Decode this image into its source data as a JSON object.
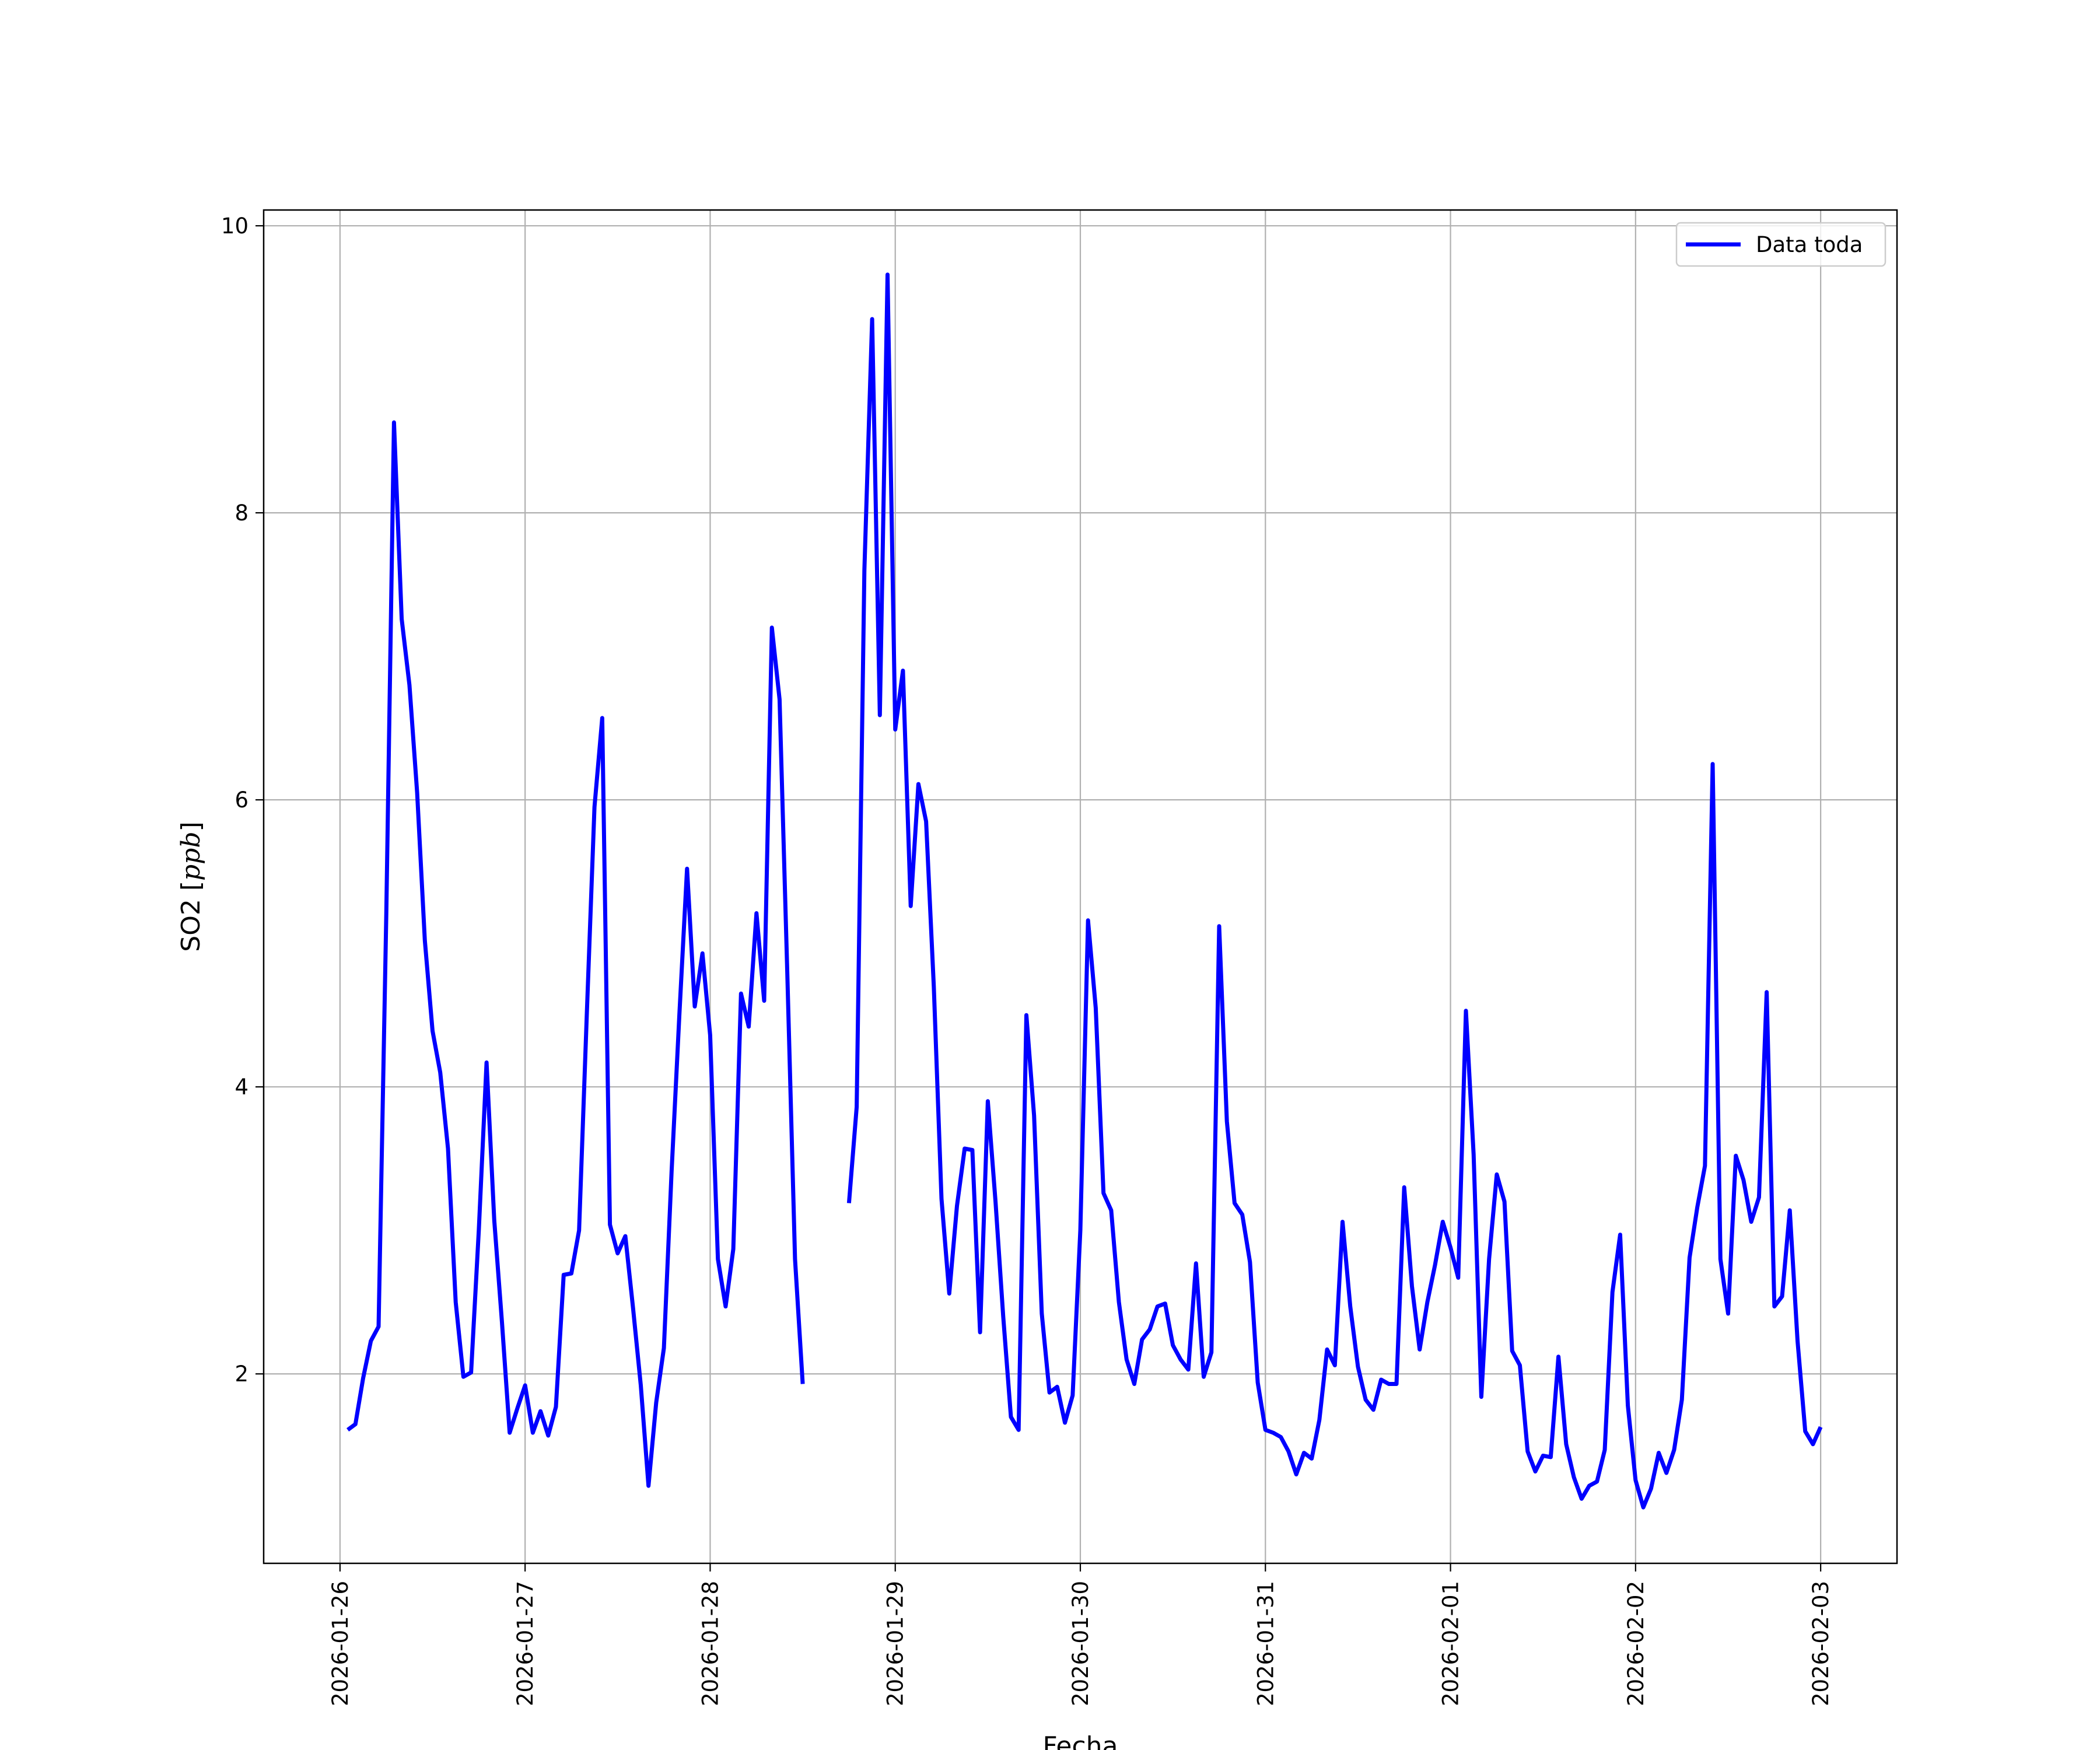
{
  "chart_data": {
    "type": "line",
    "title": "",
    "xlabel": "Fecha",
    "ylabel": "SO2 [ppb]",
    "x_ticks": [
      "2026-01-26",
      "2026-01-27",
      "2026-01-28",
      "2026-01-29",
      "2026-01-30",
      "2026-01-31",
      "2026-02-01",
      "2026-02-02",
      "2026-02-03"
    ],
    "y_ticks": [
      2,
      4,
      6,
      8,
      10
    ],
    "xlim": [
      "2026-01-25 14:06",
      "2026-02-03 09:54"
    ],
    "ylim": [
      0.68,
      10.11
    ],
    "grid": true,
    "legend_position": "top-right",
    "series": [
      {
        "name": "Data toda",
        "color": "#0000ff",
        "points": [
          [
            "2026-01-26 01:00",
            1.61
          ],
          [
            "2026-01-26 02:00",
            1.65
          ],
          [
            "2026-01-26 03:00",
            1.97
          ],
          [
            "2026-01-26 04:00",
            2.23
          ],
          [
            "2026-01-26 05:00",
            2.33
          ],
          [
            "2026-01-26 06:00",
            5.2
          ],
          [
            "2026-01-26 07:00",
            8.63
          ],
          [
            "2026-01-26 08:00",
            7.26
          ],
          [
            "2026-01-26 09:00",
            6.8
          ],
          [
            "2026-01-26 10:00",
            6.05
          ],
          [
            "2026-01-26 11:00",
            5.02
          ],
          [
            "2026-01-26 12:00",
            4.39
          ],
          [
            "2026-01-26 13:00",
            4.1
          ],
          [
            "2026-01-26 14:00",
            3.57
          ],
          [
            "2026-01-26 15:00",
            2.5
          ],
          [
            "2026-01-26 16:00",
            1.98
          ],
          [
            "2026-01-26 17:00",
            2.01
          ],
          [
            "2026-01-26 18:00",
            3.0
          ],
          [
            "2026-01-26 19:00",
            4.17
          ],
          [
            "2026-01-26 20:00",
            3.07
          ],
          [
            "2026-01-26 21:00",
            2.36
          ],
          [
            "2026-01-26 22:00",
            1.59
          ],
          [
            "2026-01-26 23:00",
            1.76
          ],
          [
            "2026-01-27 00:00",
            1.92
          ],
          [
            "2026-01-27 01:00",
            1.59
          ],
          [
            "2026-01-27 02:00",
            1.74
          ],
          [
            "2026-01-27 03:00",
            1.57
          ],
          [
            "2026-01-27 04:00",
            1.77
          ],
          [
            "2026-01-27 05:00",
            2.69
          ],
          [
            "2026-01-27 06:00",
            2.7
          ],
          [
            "2026-01-27 07:00",
            3.0
          ],
          [
            "2026-01-27 08:00",
            4.5
          ],
          [
            "2026-01-27 09:00",
            5.95
          ],
          [
            "2026-01-27 10:00",
            6.57
          ],
          [
            "2026-01-27 11:00",
            3.04
          ],
          [
            "2026-01-27 12:00",
            2.84
          ],
          [
            "2026-01-27 13:00",
            2.96
          ],
          [
            "2026-01-27 14:00",
            2.46
          ],
          [
            "2026-01-27 15:00",
            1.92
          ],
          [
            "2026-01-27 16:00",
            1.22
          ],
          [
            "2026-01-27 17:00",
            1.8
          ],
          [
            "2026-01-27 18:00",
            2.18
          ],
          [
            "2026-01-27 19:00",
            3.41
          ],
          [
            "2026-01-27 20:00",
            4.5
          ],
          [
            "2026-01-27 21:00",
            5.52
          ],
          [
            "2026-01-27 22:00",
            4.56
          ],
          [
            "2026-01-27 23:00",
            4.93
          ],
          [
            "2026-01-28 00:00",
            4.36
          ],
          [
            "2026-01-28 01:00",
            2.8
          ],
          [
            "2026-01-28 02:00",
            2.47
          ],
          [
            "2026-01-28 03:00",
            2.87
          ],
          [
            "2026-01-28 04:00",
            4.65
          ],
          [
            "2026-01-28 05:00",
            4.42
          ],
          [
            "2026-01-28 06:00",
            5.21
          ],
          [
            "2026-01-28 07:00",
            4.6
          ],
          [
            "2026-01-28 08:00",
            7.2
          ],
          [
            "2026-01-28 09:00",
            6.7
          ],
          [
            "2026-01-28 10:00",
            4.8
          ],
          [
            "2026-01-28 11:00",
            2.8
          ],
          [
            "2026-01-28 12:00",
            1.93
          ],
          [
            "2026-01-28 13:00",
            null
          ],
          [
            "2026-01-28 14:00",
            null
          ],
          [
            "2026-01-28 15:00",
            null
          ],
          [
            "2026-01-28 16:00",
            null
          ],
          [
            "2026-01-28 17:00",
            null
          ],
          [
            "2026-01-28 18:00",
            3.19
          ],
          [
            "2026-01-28 19:00",
            3.86
          ],
          [
            "2026-01-28 20:00",
            7.6
          ],
          [
            "2026-01-28 21:00",
            9.35
          ],
          [
            "2026-01-28 22:00",
            6.59
          ],
          [
            "2026-01-28 23:00",
            9.66
          ],
          [
            "2026-01-29 00:00",
            6.49
          ],
          [
            "2026-01-29 01:00",
            6.9
          ],
          [
            "2026-01-29 02:00",
            5.26
          ],
          [
            "2026-01-29 03:00",
            6.11
          ],
          [
            "2026-01-29 04:00",
            5.85
          ],
          [
            "2026-01-29 05:00",
            4.7
          ],
          [
            "2026-01-29 06:00",
            3.22
          ],
          [
            "2026-01-29 07:00",
            2.56
          ],
          [
            "2026-01-29 08:00",
            3.17
          ],
          [
            "2026-01-29 09:00",
            3.57
          ],
          [
            "2026-01-29 10:00",
            3.56
          ],
          [
            "2026-01-29 11:00",
            2.29
          ],
          [
            "2026-01-29 12:00",
            3.9
          ],
          [
            "2026-01-29 13:00",
            3.2
          ],
          [
            "2026-01-29 14:00",
            2.4
          ],
          [
            "2026-01-29 15:00",
            1.7
          ],
          [
            "2026-01-29 16:00",
            1.61
          ],
          [
            "2026-01-29 17:00",
            4.5
          ],
          [
            "2026-01-29 18:00",
            3.8
          ],
          [
            "2026-01-29 19:00",
            2.42
          ],
          [
            "2026-01-29 20:00",
            1.87
          ],
          [
            "2026-01-29 21:00",
            1.91
          ],
          [
            "2026-01-29 22:00",
            1.66
          ],
          [
            "2026-01-29 23:00",
            1.85
          ],
          [
            "2026-01-30 00:00",
            3.0
          ],
          [
            "2026-01-30 01:00",
            5.16
          ],
          [
            "2026-01-30 02:00",
            4.55
          ],
          [
            "2026-01-30 03:00",
            3.26
          ],
          [
            "2026-01-30 04:00",
            3.14
          ],
          [
            "2026-01-30 05:00",
            2.5
          ],
          [
            "2026-01-30 06:00",
            2.1
          ],
          [
            "2026-01-30 07:00",
            1.93
          ],
          [
            "2026-01-30 08:00",
            2.24
          ],
          [
            "2026-01-30 09:00",
            2.31
          ],
          [
            "2026-01-30 10:00",
            2.47
          ],
          [
            "2026-01-30 11:00",
            2.49
          ],
          [
            "2026-01-30 12:00",
            2.2
          ],
          [
            "2026-01-30 13:00",
            2.1
          ],
          [
            "2026-01-30 14:00",
            2.03
          ],
          [
            "2026-01-30 15:00",
            2.77
          ],
          [
            "2026-01-30 16:00",
            1.98
          ],
          [
            "2026-01-30 17:00",
            2.15
          ],
          [
            "2026-01-30 18:00",
            5.12
          ],
          [
            "2026-01-30 19:00",
            3.76
          ],
          [
            "2026-01-30 20:00",
            3.19
          ],
          [
            "2026-01-30 21:00",
            3.11
          ],
          [
            "2026-01-30 22:00",
            2.78
          ],
          [
            "2026-01-30 23:00",
            1.94
          ],
          [
            "2026-01-31 00:00",
            1.61
          ],
          [
            "2026-01-31 01:00",
            1.59
          ],
          [
            "2026-01-31 02:00",
            1.56
          ],
          [
            "2026-01-31 03:00",
            1.46
          ],
          [
            "2026-01-31 04:00",
            1.3
          ],
          [
            "2026-01-31 05:00",
            1.45
          ],
          [
            "2026-01-31 06:00",
            1.41
          ],
          [
            "2026-01-31 07:00",
            1.68
          ],
          [
            "2026-01-31 08:00",
            2.17
          ],
          [
            "2026-01-31 09:00",
            2.06
          ],
          [
            "2026-01-31 10:00",
            3.06
          ],
          [
            "2026-01-31 11:00",
            2.47
          ],
          [
            "2026-01-31 12:00",
            2.05
          ],
          [
            "2026-01-31 13:00",
            1.82
          ],
          [
            "2026-01-31 14:00",
            1.75
          ],
          [
            "2026-01-31 15:00",
            1.96
          ],
          [
            "2026-01-31 16:00",
            1.93
          ],
          [
            "2026-01-31 17:00",
            1.93
          ],
          [
            "2026-01-31 18:00",
            3.3
          ],
          [
            "2026-01-31 19:00",
            2.61
          ],
          [
            "2026-01-31 20:00",
            2.17
          ],
          [
            "2026-01-31 21:00",
            2.5
          ],
          [
            "2026-01-31 22:00",
            2.76
          ],
          [
            "2026-01-31 23:00",
            3.06
          ],
          [
            "2026-02-01 00:00",
            2.88
          ],
          [
            "2026-02-01 01:00",
            2.67
          ],
          [
            "2026-02-01 02:00",
            4.53
          ],
          [
            "2026-02-01 03:00",
            3.53
          ],
          [
            "2026-02-01 04:00",
            1.84
          ],
          [
            "2026-02-01 05:00",
            2.8
          ],
          [
            "2026-02-01 06:00",
            3.39
          ],
          [
            "2026-02-01 07:00",
            3.2
          ],
          [
            "2026-02-01 08:00",
            2.16
          ],
          [
            "2026-02-01 09:00",
            2.06
          ],
          [
            "2026-02-01 10:00",
            1.46
          ],
          [
            "2026-02-01 11:00",
            1.32
          ],
          [
            "2026-02-01 12:00",
            1.43
          ],
          [
            "2026-02-01 13:00",
            1.42
          ],
          [
            "2026-02-01 14:00",
            2.12
          ],
          [
            "2026-02-01 15:00",
            1.51
          ],
          [
            "2026-02-01 16:00",
            1.28
          ],
          [
            "2026-02-01 17:00",
            1.13
          ],
          [
            "2026-02-01 18:00",
            1.22
          ],
          [
            "2026-02-01 19:00",
            1.25
          ],
          [
            "2026-02-01 20:00",
            1.47
          ],
          [
            "2026-02-01 21:00",
            2.57
          ],
          [
            "2026-02-01 22:00",
            2.97
          ],
          [
            "2026-02-01 23:00",
            1.78
          ],
          [
            "2026-02-02 00:00",
            1.26
          ],
          [
            "2026-02-02 01:00",
            1.07
          ],
          [
            "2026-02-02 02:00",
            1.2
          ],
          [
            "2026-02-02 03:00",
            1.45
          ],
          [
            "2026-02-02 04:00",
            1.31
          ],
          [
            "2026-02-02 05:00",
            1.47
          ],
          [
            "2026-02-02 06:00",
            1.82
          ],
          [
            "2026-02-02 07:00",
            2.81
          ],
          [
            "2026-02-02 08:00",
            3.16
          ],
          [
            "2026-02-02 09:00",
            3.45
          ],
          [
            "2026-02-02 10:00",
            6.25
          ],
          [
            "2026-02-02 11:00",
            2.8
          ],
          [
            "2026-02-02 12:00",
            2.42
          ],
          [
            "2026-02-02 13:00",
            3.52
          ],
          [
            "2026-02-02 14:00",
            3.35
          ],
          [
            "2026-02-02 15:00",
            3.06
          ],
          [
            "2026-02-02 16:00",
            3.23
          ],
          [
            "2026-02-02 17:00",
            4.66
          ],
          [
            "2026-02-02 18:00",
            2.47
          ],
          [
            "2026-02-02 19:00",
            2.54
          ],
          [
            "2026-02-02 20:00",
            3.14
          ],
          [
            "2026-02-02 21:00",
            2.23
          ],
          [
            "2026-02-02 22:00",
            1.6
          ],
          [
            "2026-02-02 23:00",
            1.51
          ],
          [
            "2026-02-03 00:00",
            1.63
          ]
        ]
      }
    ]
  }
}
